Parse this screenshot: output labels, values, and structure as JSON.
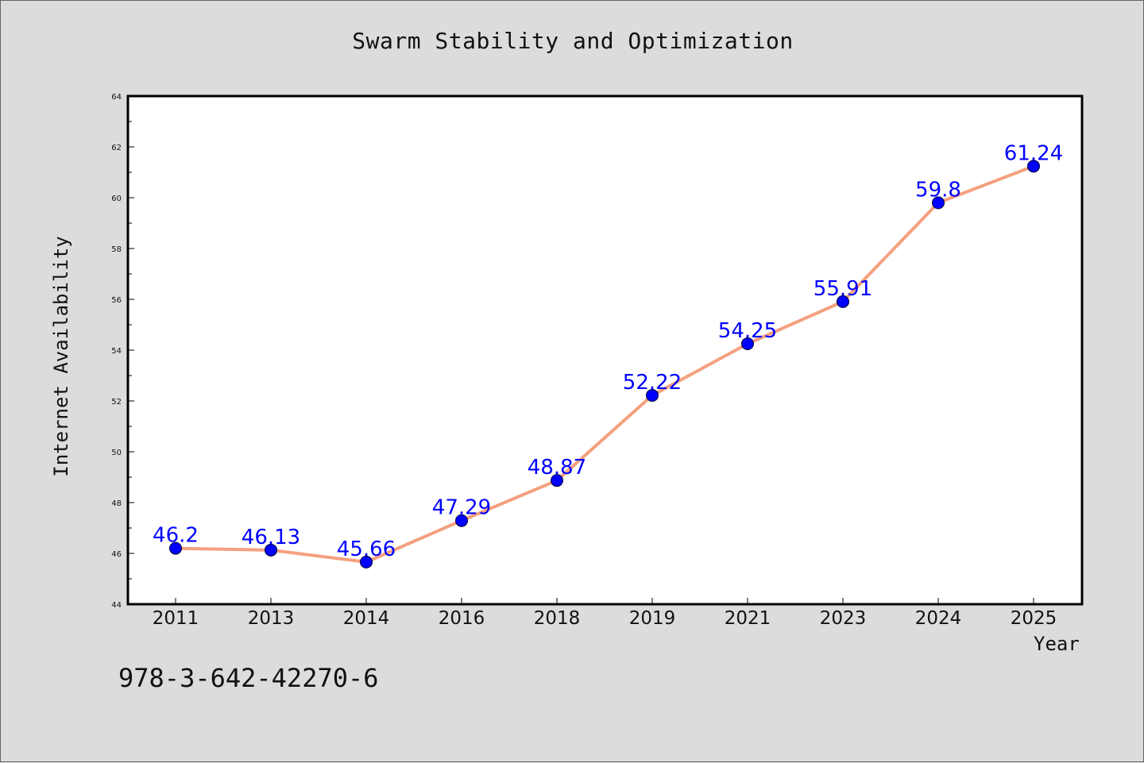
{
  "chart_data": {
    "type": "line",
    "title": "Swarm Stability and Optimization",
    "xlabel": "Year",
    "ylabel": "Internet Availability",
    "annotation": "978-3-642-42270-6",
    "categories": [
      "2011",
      "2013",
      "2014",
      "2016",
      "2018",
      "2019",
      "2021",
      "2023",
      "2024",
      "2025"
    ],
    "series": [
      {
        "values": [
          46.2,
          46.13,
          45.66,
          47.29,
          48.87,
          52.22,
          54.25,
          55.91,
          59.8,
          61.24
        ],
        "labels": [
          "46.2",
          "46.13",
          "45.66",
          "47.29",
          "48.87",
          "52.22",
          "54.25",
          "55.91",
          "59.8",
          "61.24"
        ],
        "line_color": "#f4a07f",
        "marker_color": "#0000ff"
      }
    ],
    "ylim": [
      44,
      64
    ],
    "yticks": [
      "44",
      "46",
      "48",
      "50",
      "52",
      "54",
      "56",
      "58",
      "60",
      "62",
      "64"
    ],
    "grid": false,
    "legend": "none"
  }
}
